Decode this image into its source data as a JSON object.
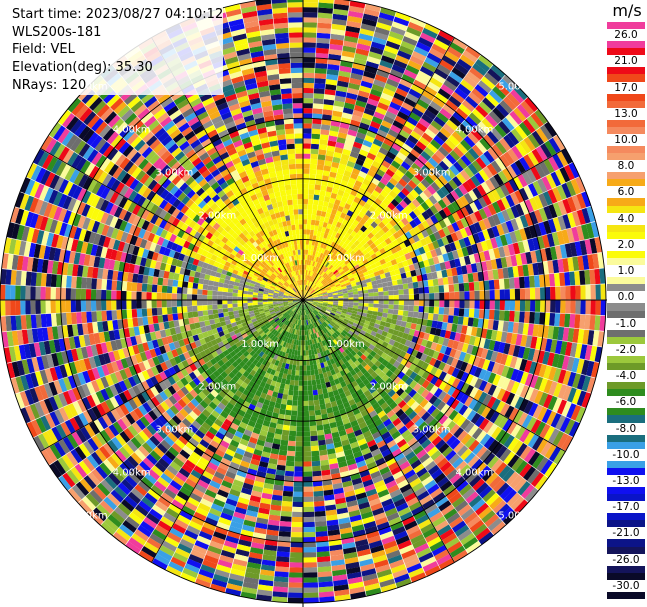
{
  "info": {
    "start_time": "Start time: 2023/08/27 04:10:12",
    "station": "WLS200s-181",
    "field": "Field: VEL",
    "elevation": "Elevation(deg): 35.30",
    "nrays": "NRays: 120"
  },
  "range_labels": {
    "r1": "1.00km",
    "r2": "2.00km",
    "r3": "3.00km",
    "r4": "4.00km",
    "r5": "5.00km"
  },
  "colorbar": {
    "unit": "m/s",
    "levels": [
      {
        "label": "26.0",
        "color": "#f03c9c"
      },
      {
        "label": "21.0",
        "color": "#ee0a18"
      },
      {
        "label": "17.0",
        "color": "#f0481a"
      },
      {
        "label": "13.0",
        "color": "#f26a3a"
      },
      {
        "label": "10.0",
        "color": "#f58a5e"
      },
      {
        "label": "8.0",
        "color": "#f6a06e"
      },
      {
        "label": "6.0",
        "color": "#f7aa18"
      },
      {
        "label": "4.0",
        "color": "#f5e612"
      },
      {
        "label": "2.0",
        "color": "#fbfb0a"
      },
      {
        "label": "1.0",
        "color": "#fbfb9c"
      },
      {
        "label": "0.0",
        "color": "#8c8c8c"
      },
      {
        "label": "-1.0",
        "color": "#6e6e6e"
      },
      {
        "label": "-2.0",
        "color": "#9cc83c"
      },
      {
        "label": "-4.0",
        "color": "#6e9a28"
      },
      {
        "label": "-6.0",
        "color": "#2e8c1e"
      },
      {
        "label": "-8.0",
        "color": "#1a6e7e"
      },
      {
        "label": "-10.0",
        "color": "#3aa0e6"
      },
      {
        "label": "-13.0",
        "color": "#1010f0"
      },
      {
        "label": "-17.0",
        "color": "#0a14c8"
      },
      {
        "label": "-21.0",
        "color": "#0c1488"
      },
      {
        "label": "-26.0",
        "color": "#14145a"
      },
      {
        "label": "-30.0",
        "color": "#0a0a28"
      }
    ]
  },
  "ppi_data": {
    "field": "VEL",
    "nrays": 120,
    "max_range_km": 5.0,
    "range_rings_km": [
      1,
      2,
      3,
      4,
      5
    ],
    "spoke_angles_deg": [
      0,
      30,
      60,
      90,
      120,
      150,
      180,
      210,
      240,
      270,
      300,
      330
    ]
  }
}
